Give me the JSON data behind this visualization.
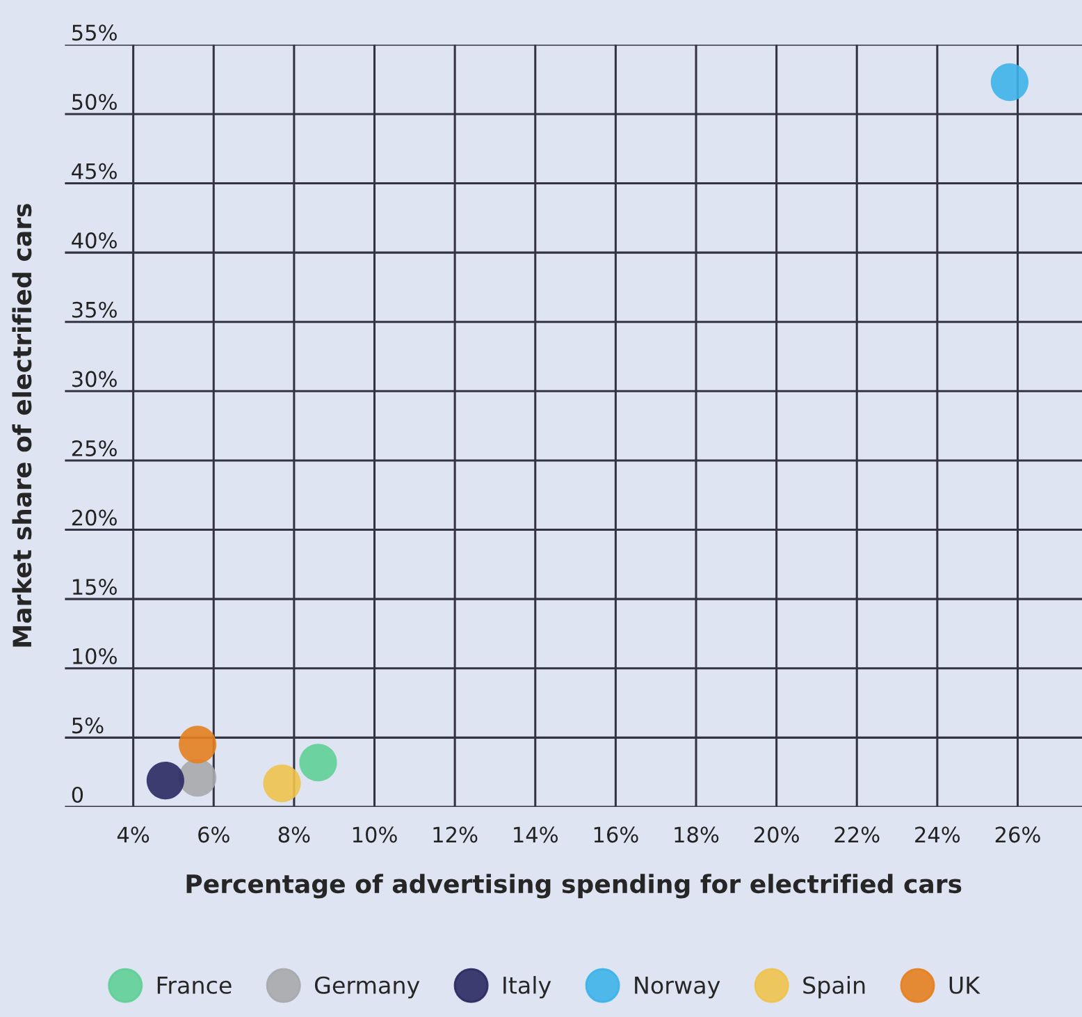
{
  "chart_data": {
    "type": "scatter",
    "xlabel": "Percentage of advertising spending for electrified cars",
    "ylabel": "Market share of electrified cars",
    "series": [
      {
        "name": "France",
        "color": "#5fcf97",
        "x": [
          8.6
        ],
        "values": [
          3.2
        ]
      },
      {
        "name": "Germany",
        "color": "#a7a9ac",
        "x": [
          5.6
        ],
        "values": [
          2.1
        ]
      },
      {
        "name": "Italy",
        "color": "#2b2962",
        "x": [
          4.8
        ],
        "values": [
          1.9
        ]
      },
      {
        "name": "Norway",
        "color": "#3db3e8",
        "x": [
          25.8
        ],
        "values": [
          52.3
        ]
      },
      {
        "name": "Spain",
        "color": "#f0c24e",
        "x": [
          7.7
        ],
        "values": [
          1.7
        ]
      },
      {
        "name": "UK",
        "color": "#e5801f",
        "x": [
          5.6
        ],
        "values": [
          4.5
        ]
      }
    ],
    "xlim": [
      2.3,
      27.6
    ],
    "ylim": [
      0,
      55
    ],
    "xticks": [
      {
        "value": 4,
        "label": "4%"
      },
      {
        "value": 6,
        "label": "6%"
      },
      {
        "value": 8,
        "label": "8%"
      },
      {
        "value": 10,
        "label": "10%"
      },
      {
        "value": 12,
        "label": "12%"
      },
      {
        "value": 14,
        "label": "14%"
      },
      {
        "value": 16,
        "label": "16%"
      },
      {
        "value": 18,
        "label": "18%"
      },
      {
        "value": 20,
        "label": "20%"
      },
      {
        "value": 22,
        "label": "22%"
      },
      {
        "value": 24,
        "label": "24%"
      },
      {
        "value": 26,
        "label": "26%"
      }
    ],
    "yticks": [
      {
        "value": 0,
        "label": "0"
      },
      {
        "value": 5,
        "label": "5%"
      },
      {
        "value": 10,
        "label": "10%"
      },
      {
        "value": 15,
        "label": "15%"
      },
      {
        "value": 20,
        "label": "20%"
      },
      {
        "value": 25,
        "label": "25%"
      },
      {
        "value": 30,
        "label": "30%"
      },
      {
        "value": 35,
        "label": "35%"
      },
      {
        "value": 40,
        "label": "40%"
      },
      {
        "value": 45,
        "label": "45%"
      },
      {
        "value": 50,
        "label": "50%"
      },
      {
        "value": 55,
        "label": "55%"
      }
    ],
    "grid": true,
    "legend": "bottom",
    "marker": "circle"
  }
}
